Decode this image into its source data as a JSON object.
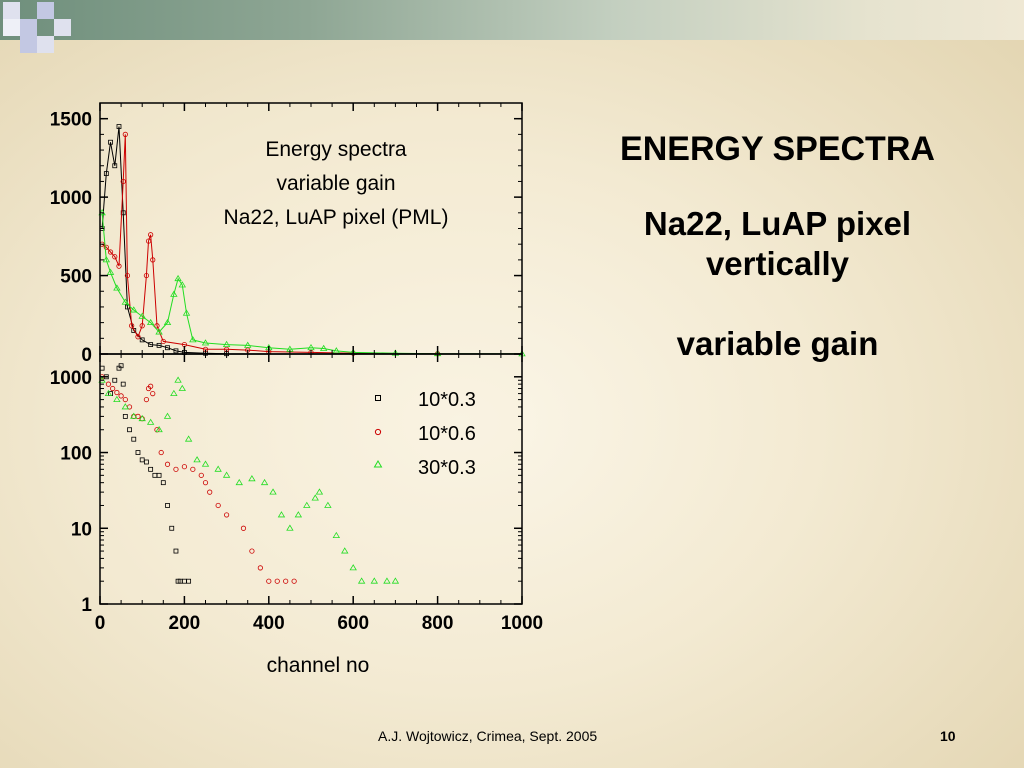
{
  "chart_data": {
    "type": "scatter",
    "title_lines": [
      "Energy spectra",
      "variable gain",
      "Na22, LuAP pixel (PML)"
    ],
    "xlabel": "channel no",
    "xlim": [
      0,
      1000
    ],
    "x_ticks": [
      "0",
      "200",
      "400",
      "600",
      "800",
      "1000"
    ],
    "panels": [
      {
        "name": "linear",
        "scale": "linear",
        "ylim": [
          0,
          1600
        ],
        "y_ticks": [
          "0",
          "500",
          "1000",
          "1500"
        ],
        "series": [
          {
            "name": "10*0.3",
            "marker": "square",
            "color": "#000000",
            "points": [
              [
                5,
                800
              ],
              [
                15,
                1150
              ],
              [
                25,
                1350
              ],
              [
                35,
                1200
              ],
              [
                45,
                1450
              ],
              [
                55,
                900
              ],
              [
                65,
                300
              ],
              [
                80,
                150
              ],
              [
                100,
                90
              ],
              [
                120,
                60
              ],
              [
                140,
                55
              ],
              [
                160,
                40
              ],
              [
                180,
                20
              ],
              [
                200,
                10
              ],
              [
                250,
                5
              ],
              [
                300,
                2
              ]
            ]
          },
          {
            "name": "10*0.6",
            "marker": "circle",
            "color": "#cc0000",
            "points": [
              [
                5,
                700
              ],
              [
                15,
                680
              ],
              [
                25,
                650
              ],
              [
                35,
                620
              ],
              [
                45,
                560
              ],
              [
                55,
                1100
              ],
              [
                60,
                1400
              ],
              [
                65,
                500
              ],
              [
                75,
                180
              ],
              [
                90,
                110
              ],
              [
                100,
                180
              ],
              [
                110,
                500
              ],
              [
                115,
                720
              ],
              [
                120,
                760
              ],
              [
                125,
                600
              ],
              [
                135,
                180
              ],
              [
                150,
                80
              ],
              [
                200,
                60
              ],
              [
                250,
                30
              ],
              [
                300,
                30
              ],
              [
                350,
                25
              ],
              [
                400,
                15
              ],
              [
                500,
                10
              ],
              [
                600,
                5
              ],
              [
                800,
                2
              ]
            ]
          },
          {
            "name": "30*0.3",
            "marker": "triangle",
            "color": "#22dd22",
            "points": [
              [
                5,
                900
              ],
              [
                15,
                600
              ],
              [
                25,
                520
              ],
              [
                40,
                420
              ],
              [
                60,
                330
              ],
              [
                80,
                280
              ],
              [
                100,
                240
              ],
              [
                120,
                200
              ],
              [
                140,
                140
              ],
              [
                160,
                200
              ],
              [
                175,
                380
              ],
              [
                185,
                480
              ],
              [
                195,
                440
              ],
              [
                205,
                260
              ],
              [
                220,
                90
              ],
              [
                250,
                70
              ],
              [
                300,
                60
              ],
              [
                350,
                55
              ],
              [
                400,
                40
              ],
              [
                450,
                30
              ],
              [
                500,
                40
              ],
              [
                530,
                35
              ],
              [
                560,
                20
              ],
              [
                600,
                10
              ],
              [
                700,
                5
              ],
              [
                800,
                2
              ],
              [
                1000,
                1
              ]
            ]
          }
        ]
      },
      {
        "name": "log",
        "scale": "log",
        "ylim": [
          1,
          2000
        ],
        "y_ticks": [
          "1",
          "10",
          "100",
          "1000"
        ],
        "series": [
          {
            "name": "10*0.3",
            "marker": "square",
            "color": "#000000",
            "points": [
              [
                5,
                1300
              ],
              [
                15,
                1000
              ],
              [
                25,
                600
              ],
              [
                35,
                900
              ],
              [
                45,
                1300
              ],
              [
                50,
                1400
              ],
              [
                55,
                800
              ],
              [
                60,
                300
              ],
              [
                70,
                200
              ],
              [
                80,
                150
              ],
              [
                90,
                100
              ],
              [
                100,
                80
              ],
              [
                110,
                75
              ],
              [
                120,
                60
              ],
              [
                130,
                50
              ],
              [
                140,
                50
              ],
              [
                150,
                40
              ],
              [
                160,
                20
              ],
              [
                170,
                10
              ],
              [
                180,
                5
              ],
              [
                185,
                2
              ],
              [
                190,
                2
              ],
              [
                200,
                2
              ],
              [
                210,
                2
              ]
            ]
          },
          {
            "name": "10*0.6",
            "marker": "circle",
            "color": "#cc0000",
            "points": [
              [
                5,
                1000
              ],
              [
                20,
                800
              ],
              [
                30,
                700
              ],
              [
                40,
                620
              ],
              [
                50,
                560
              ],
              [
                60,
                500
              ],
              [
                70,
                400
              ],
              [
                80,
                300
              ],
              [
                90,
                300
              ],
              [
                100,
                280
              ],
              [
                110,
                500
              ],
              [
                115,
                700
              ],
              [
                120,
                750
              ],
              [
                125,
                600
              ],
              [
                135,
                200
              ],
              [
                145,
                100
              ],
              [
                160,
                70
              ],
              [
                180,
                60
              ],
              [
                200,
                65
              ],
              [
                220,
                60
              ],
              [
                240,
                50
              ],
              [
                250,
                40
              ],
              [
                260,
                30
              ],
              [
                280,
                20
              ],
              [
                300,
                15
              ],
              [
                340,
                10
              ],
              [
                360,
                5
              ],
              [
                380,
                3
              ],
              [
                400,
                2
              ],
              [
                420,
                2
              ],
              [
                440,
                2
              ],
              [
                460,
                2
              ]
            ]
          },
          {
            "name": "30*0.3",
            "marker": "triangle",
            "color": "#22dd22",
            "points": [
              [
                5,
                900
              ],
              [
                20,
                600
              ],
              [
                40,
                500
              ],
              [
                60,
                400
              ],
              [
                80,
                300
              ],
              [
                100,
                280
              ],
              [
                120,
                250
              ],
              [
                140,
                200
              ],
              [
                160,
                300
              ],
              [
                175,
                600
              ],
              [
                185,
                900
              ],
              [
                195,
                700
              ],
              [
                210,
                150
              ],
              [
                230,
                80
              ],
              [
                250,
                70
              ],
              [
                280,
                60
              ],
              [
                300,
                50
              ],
              [
                330,
                40
              ],
              [
                360,
                45
              ],
              [
                390,
                40
              ],
              [
                410,
                30
              ],
              [
                430,
                15
              ],
              [
                450,
                10
              ],
              [
                470,
                15
              ],
              [
                490,
                20
              ],
              [
                510,
                25
              ],
              [
                520,
                30
              ],
              [
                540,
                20
              ],
              [
                560,
                8
              ],
              [
                580,
                5
              ],
              [
                600,
                3
              ],
              [
                620,
                2
              ],
              [
                650,
                2
              ],
              [
                680,
                2
              ],
              [
                700,
                2
              ]
            ]
          }
        ]
      }
    ],
    "legend": {
      "placement": "lower-panel right",
      "items": [
        "10*0.3",
        "10*0.6",
        "30*0.3"
      ]
    }
  },
  "slide": {
    "title": "ENERGY SPECTRA",
    "subtitle_line1": "Na22, LuAP pixel",
    "subtitle_line2": "vertically",
    "subtitle3": "variable gain",
    "footer": "A.J. Wojtowicz, Crimea, Sept. 2005",
    "page_number": "10"
  },
  "colors": {
    "series1": "#000000",
    "series2": "#cc0000",
    "series3": "#22dd22",
    "top_band": "#6f8f7c"
  }
}
